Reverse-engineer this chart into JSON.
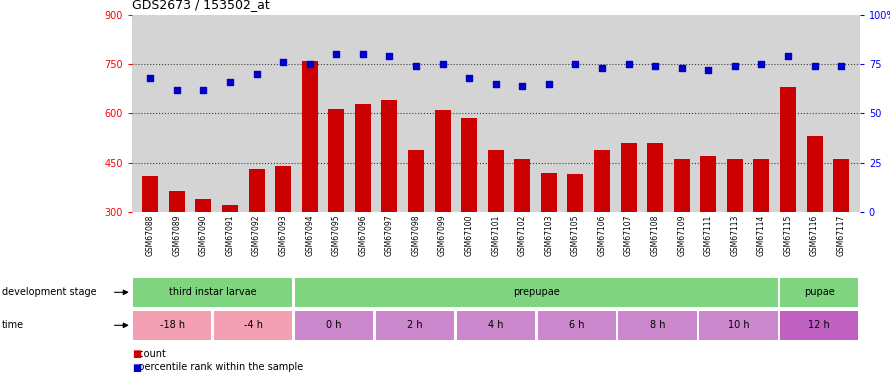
{
  "title": "GDS2673 / 153502_at",
  "samples": [
    "GSM67088",
    "GSM67089",
    "GSM67090",
    "GSM67091",
    "GSM67092",
    "GSM67093",
    "GSM67094",
    "GSM67095",
    "GSM67096",
    "GSM67097",
    "GSM67098",
    "GSM67099",
    "GSM67100",
    "GSM67101",
    "GSM67102",
    "GSM67103",
    "GSM67105",
    "GSM67106",
    "GSM67107",
    "GSM67108",
    "GSM67109",
    "GSM67111",
    "GSM67113",
    "GSM67114",
    "GSM67115",
    "GSM67116",
    "GSM67117"
  ],
  "counts": [
    410,
    365,
    340,
    320,
    430,
    440,
    760,
    615,
    630,
    640,
    490,
    610,
    585,
    490,
    460,
    420,
    415,
    490,
    510,
    510,
    460,
    470,
    460,
    460,
    680,
    530,
    460
  ],
  "percentile": [
    68,
    62,
    62,
    66,
    70,
    76,
    75,
    80,
    80,
    79,
    74,
    75,
    68,
    65,
    64,
    65,
    75,
    73,
    75,
    74,
    73,
    72,
    74,
    75,
    79,
    74,
    74
  ],
  "ylim_left": [
    300,
    900
  ],
  "ylim_right": [
    0,
    100
  ],
  "yticks_left": [
    300,
    450,
    600,
    750,
    900
  ],
  "yticks_right": [
    0,
    25,
    50,
    75,
    100
  ],
  "bar_color": "#CC0000",
  "dot_color": "#0000CC",
  "plot_bg_color": "#D4D4D4",
  "xtick_bg_color": "#C8C8C8",
  "dev_stage_green": "#7FD47F",
  "time_pink": "#F4A0B4",
  "time_purple": "#CC88CC",
  "time_dark_purple": "#C060C0",
  "grid_dotted_color": "#404040",
  "dev_stage_groups": [
    {
      "label": "third instar larvae",
      "start": 0,
      "end": 6
    },
    {
      "label": "prepupae",
      "start": 6,
      "end": 24
    },
    {
      "label": "pupae",
      "start": 24,
      "end": 27
    }
  ],
  "time_groups": [
    {
      "label": "-18 h",
      "start": 0,
      "end": 3,
      "type": "pink"
    },
    {
      "label": "-4 h",
      "start": 3,
      "end": 6,
      "type": "pink"
    },
    {
      "label": "0 h",
      "start": 6,
      "end": 9,
      "type": "purple"
    },
    {
      "label": "2 h",
      "start": 9,
      "end": 12,
      "type": "purple"
    },
    {
      "label": "4 h",
      "start": 12,
      "end": 15,
      "type": "purple"
    },
    {
      "label": "6 h",
      "start": 15,
      "end": 18,
      "type": "purple"
    },
    {
      "label": "8 h",
      "start": 18,
      "end": 21,
      "type": "purple"
    },
    {
      "label": "10 h",
      "start": 21,
      "end": 24,
      "type": "purple"
    },
    {
      "label": "12 h",
      "start": 24,
      "end": 27,
      "type": "dark_purple"
    }
  ]
}
